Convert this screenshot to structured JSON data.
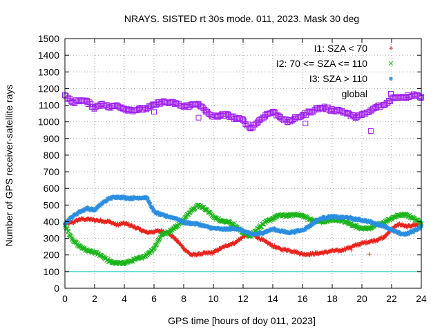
{
  "chart_data": {
    "type": "scatter",
    "title": "NRAYS. SISTED rt 30s mode. 011, 2023. Mask 30 deg",
    "xlabel": "GPS time [hours of doy 011, 2023]",
    "ylabel": "Number of GPS receiver-satellite rays",
    "xlim": [
      0,
      24
    ],
    "ylim": [
      0,
      1500
    ],
    "x_ticks": [
      0,
      2,
      4,
      6,
      8,
      10,
      12,
      14,
      16,
      18,
      20,
      22,
      24
    ],
    "y_ticks": [
      0,
      100,
      200,
      300,
      400,
      500,
      600,
      700,
      800,
      900,
      1000,
      1100,
      1200,
      1300,
      1400,
      1500
    ],
    "grid": true,
    "legend_position": "top-right",
    "mask_line": {
      "y": 100,
      "color": "#00c8c8"
    },
    "series": [
      {
        "name": "I1: SZA < 70",
        "color": "#e8231c",
        "marker": "+",
        "x": [
          0,
          0.5,
          1,
          1.5,
          2,
          2.5,
          3,
          3.5,
          4,
          4.5,
          5,
          5.5,
          6,
          6.5,
          7,
          7.5,
          8,
          8.5,
          9,
          9.5,
          10,
          10.5,
          11,
          11.5,
          12,
          12.5,
          13,
          13.5,
          14,
          14.5,
          15,
          15.5,
          16,
          16.5,
          17,
          17.5,
          18,
          18.5,
          19,
          19.5,
          20,
          20.5,
          21,
          21.5,
          22,
          22.5,
          23,
          23.5,
          24
        ],
        "values": [
          385,
          395,
          415,
          415,
          410,
          405,
          400,
          380,
          390,
          375,
          355,
          335,
          340,
          345,
          330,
          290,
          240,
          200,
          205,
          210,
          215,
          240,
          260,
          275,
          310,
          330,
          305,
          280,
          255,
          235,
          230,
          220,
          205,
          205,
          210,
          215,
          225,
          225,
          240,
          255,
          270,
          280,
          290,
          305,
          355,
          385,
          370,
          380,
          385
        ]
      },
      {
        "name": "I2: 70 <= SZA <= 110",
        "color": "#1ab51a",
        "marker": "x",
        "x": [
          0,
          0.5,
          1,
          1.5,
          2,
          2.5,
          3,
          3.5,
          4,
          4.5,
          5,
          5.5,
          6,
          6.5,
          7,
          7.5,
          8,
          8.5,
          9,
          9.5,
          10,
          10.5,
          11,
          11.5,
          12,
          12.5,
          13,
          13.5,
          14,
          14.5,
          15,
          15.5,
          16,
          16.5,
          17,
          17.5,
          18,
          18.5,
          19,
          19.5,
          20,
          20.5,
          21,
          21.5,
          22,
          22.5,
          23,
          23.5,
          24
        ],
        "values": [
          380,
          290,
          250,
          225,
          215,
          195,
          160,
          150,
          152,
          165,
          180,
          200,
          240,
          320,
          340,
          370,
          410,
          470,
          500,
          475,
          430,
          405,
          400,
          370,
          335,
          315,
          360,
          395,
          420,
          440,
          435,
          445,
          435,
          415,
          400,
          400,
          410,
          410,
          395,
          375,
          360,
          360,
          380,
          395,
          420,
          440,
          440,
          420,
          390
        ]
      },
      {
        "name": "I3: SZA > 110",
        "color": "#2b8ee0",
        "marker": "*",
        "x": [
          0,
          0.5,
          1,
          1.5,
          2,
          2.5,
          3,
          3.5,
          4,
          4.5,
          5,
          5.5,
          6,
          6.5,
          7,
          7.5,
          8,
          8.5,
          9,
          9.5,
          10,
          10.5,
          11,
          11.5,
          12,
          12.5,
          13,
          13.5,
          14,
          14.5,
          15,
          15.5,
          16,
          16.5,
          17,
          17.5,
          18,
          18.5,
          19,
          19.5,
          20,
          20.5,
          21,
          21.5,
          22,
          22.5,
          23,
          23.5,
          24
        ],
        "values": [
          390,
          430,
          460,
          480,
          470,
          510,
          540,
          550,
          545,
          540,
          545,
          545,
          460,
          440,
          430,
          420,
          395,
          390,
          385,
          370,
          360,
          355,
          355,
          360,
          345,
          325,
          325,
          340,
          355,
          345,
          335,
          340,
          350,
          375,
          410,
          425,
          430,
          425,
          425,
          415,
          410,
          400,
          385,
          375,
          350,
          330,
          325,
          345,
          370
        ]
      },
      {
        "name": "global",
        "color": "#a020f0",
        "marker": "open-square",
        "x": [
          0,
          0.5,
          1,
          1.5,
          2,
          2.5,
          3,
          3.5,
          4,
          4.5,
          5,
          5.5,
          6,
          6.5,
          7,
          7.5,
          8,
          8.5,
          9,
          9.5,
          10,
          10.5,
          11,
          11.5,
          12,
          12.5,
          13,
          13.5,
          14,
          14.5,
          15,
          15.5,
          16,
          16.5,
          17,
          17.5,
          18,
          18.5,
          19,
          19.5,
          20,
          20.5,
          21,
          21.5,
          22,
          22.5,
          23,
          23.5,
          24
        ],
        "values": [
          1160,
          1115,
          1130,
          1120,
          1085,
          1110,
          1085,
          1100,
          1080,
          1070,
          1075,
          1080,
          1100,
          1120,
          1115,
          1110,
          1090,
          1100,
          1110,
          1060,
          1030,
          1040,
          1040,
          1020,
          1010,
          960,
          1000,
          1040,
          1060,
          1030,
          1000,
          1020,
          1040,
          1060,
          1080,
          1085,
          1070,
          1070,
          1050,
          1030,
          1040,
          1060,
          1090,
          1100,
          1140,
          1150,
          1150,
          1165,
          1150
        ],
        "outliers": [
          {
            "x": 6.0,
            "y": 1060
          },
          {
            "x": 9.0,
            "y": 1025
          },
          {
            "x": 16.2,
            "y": 990
          },
          {
            "x": 20.6,
            "y": 945
          }
        ]
      }
    ]
  }
}
